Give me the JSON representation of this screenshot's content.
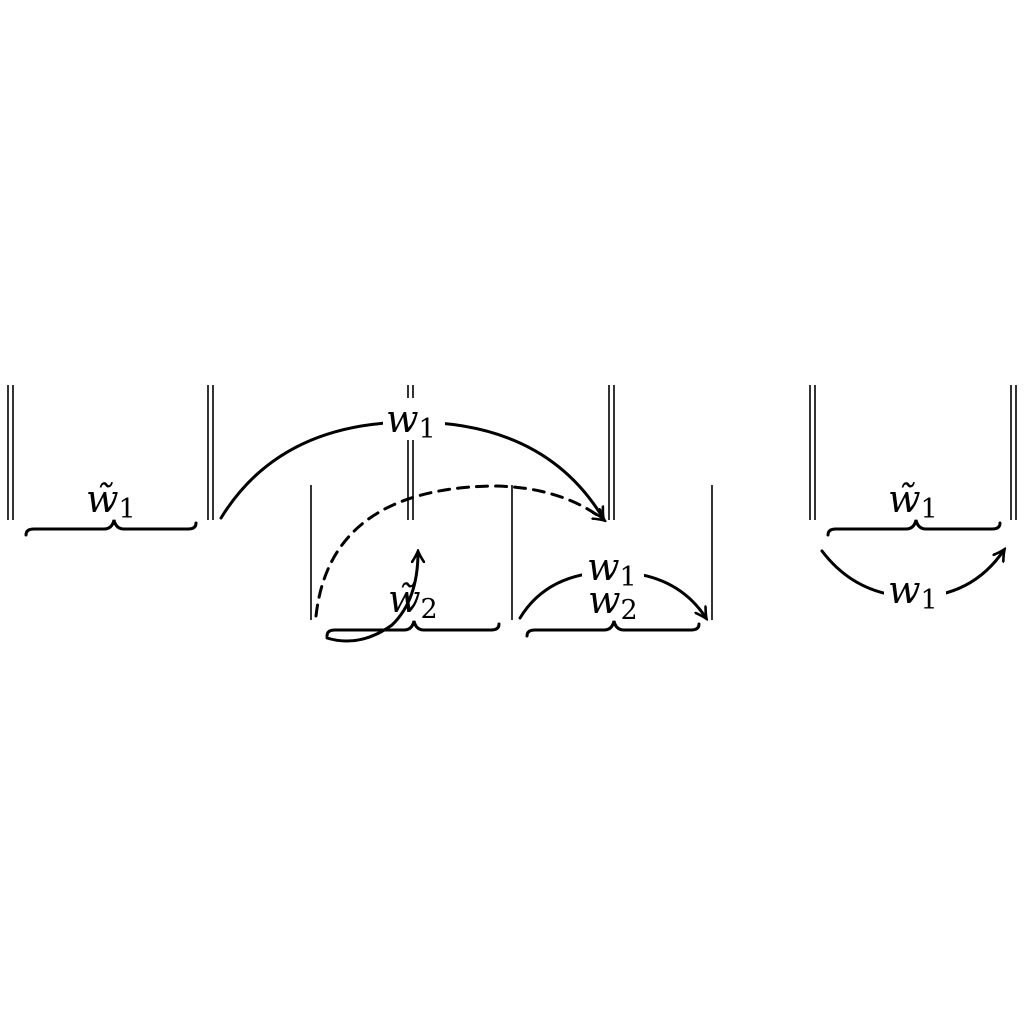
{
  "diagram": {
    "labels": {
      "w1_tilde_left": "w̃",
      "w1_tilde_left_sub": "1",
      "w1_top": "w",
      "w1_top_sub": "1",
      "w2_tilde": "w̃",
      "w2_tilde_sub": "2",
      "w1_mid": "w",
      "w1_mid_sub": "1",
      "w2_mid": "w",
      "w2_mid_sub": "2",
      "w1_tilde_right": "w̃",
      "w1_tilde_right_sub": "1",
      "w1_bottom_right": "w",
      "w1_bottom_right_sub": "1"
    },
    "colors": {
      "ink": "#000000",
      "background": "#ffffff"
    }
  }
}
